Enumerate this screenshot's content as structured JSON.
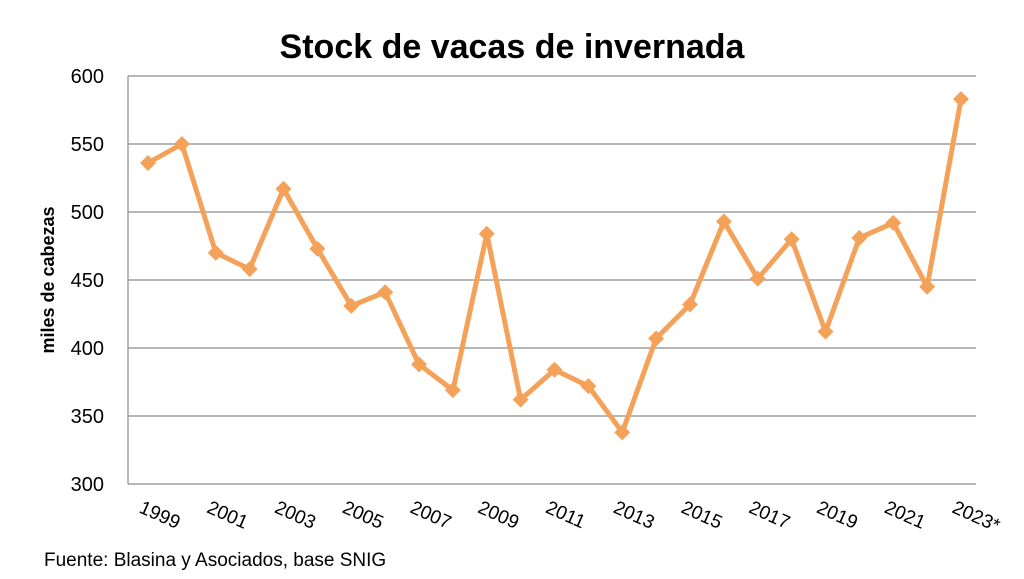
{
  "chart_data": {
    "type": "line",
    "title": "Stock de vacas de invernada",
    "ylabel": "miles de cabezas",
    "xlabel": "",
    "ylim": [
      300,
      600
    ],
    "yticks": [
      "300",
      "350",
      "400",
      "450",
      "500",
      "550",
      "600"
    ],
    "grid": true,
    "x": [
      "1999",
      "2000",
      "2001",
      "2002",
      "2003",
      "2004",
      "2005",
      "2006",
      "2007",
      "2008",
      "2009",
      "2010",
      "2011",
      "2012",
      "2013",
      "2014",
      "2015",
      "2016",
      "2017",
      "2018",
      "2019",
      "2020",
      "2021",
      "2022",
      "2023*"
    ],
    "xtick_labels": [
      "1999",
      "2001",
      "2003",
      "2005",
      "2007",
      "2009",
      "2011",
      "2013",
      "2015",
      "2017",
      "2019",
      "2021",
      "2023*"
    ],
    "series": [
      {
        "values": [
          536,
          550,
          470,
          458,
          517,
          473,
          431,
          441,
          388,
          369,
          484,
          362,
          384,
          372,
          338,
          407,
          432,
          493,
          451,
          480,
          412,
          481,
          492,
          445,
          583
        ],
        "color": "#f4a259"
      }
    ],
    "source": "Fuente: Blasina y Asociados, base  SNIG"
  }
}
